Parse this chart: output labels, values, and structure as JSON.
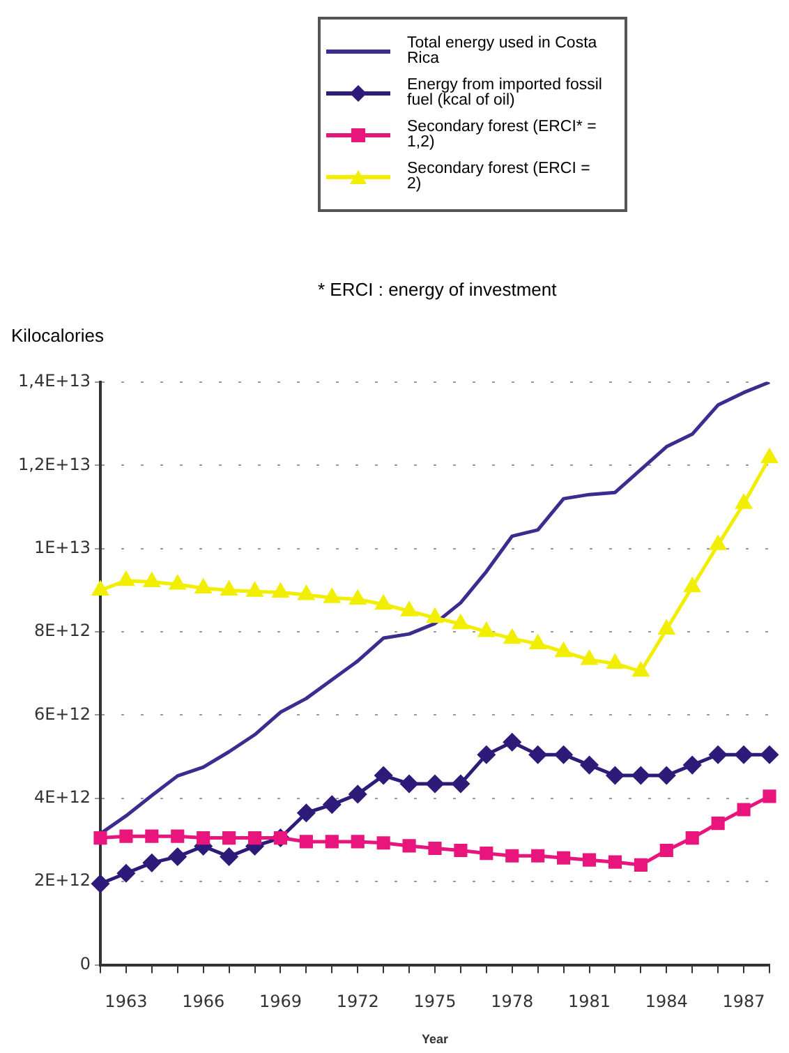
{
  "chart_data": {
    "type": "line",
    "ylabel": "Kilocalories",
    "xlabel": "Year",
    "legend": "top",
    "grid": "y",
    "annotations": [
      "* ERCI : energy of investment"
    ],
    "categories": [
      null,
      "1963",
      null,
      null,
      "1966",
      null,
      null,
      "1969",
      null,
      null,
      "1972",
      null,
      null,
      "1975",
      null,
      null,
      "1978",
      null,
      null,
      "1981",
      null,
      null,
      "1984",
      null,
      null,
      "1987",
      null
    ],
    "ylim": [
      0,
      14000000000000
    ],
    "yticks": [
      0,
      {
        "value": 2000000000000,
        "label": "2E+12"
      },
      {
        "value": 4000000000000,
        "label": "4E+12"
      },
      {
        "value": 6000000000000,
        "label": "6E+12"
      },
      {
        "value": 8000000000000,
        "label": "8E+12"
      },
      {
        "value": 10000000000000,
        "label": "1E+13"
      },
      {
        "value": 12000000000000,
        "label": "1,2E+13"
      },
      {
        "value": 14000000000000,
        "label": "1,4E+13"
      }
    ],
    "series": [
      {
        "name": "Total energy used in Costa Rica",
        "color": "#3d2b8f",
        "marker": "none",
        "values": [
          3150000000000.0,
          3580000000000.0,
          4070000000000.0,
          4540000000000.0,
          4750000000000.0,
          5120000000000.0,
          5530000000000.0,
          6070000000000.0,
          6400000000000.0,
          6850000000000.0,
          7300000000000.0,
          7850000000000.0,
          7950000000000.0,
          8200000000000.0,
          8700000000000.0,
          9450000000000.0,
          10300000000000.0,
          10450000000000.0,
          11200000000000.0,
          11300000000000.0,
          11350000000000.0,
          11900000000000.0,
          12450000000000.0,
          12750000000000.0,
          13450000000000.0,
          13750000000000.0,
          14000000000000.0
        ]
      },
      {
        "name": "Energy from imported fossil fuel (kcal of oil)",
        "color": "#2e1a78",
        "marker": "diamond",
        "values": [
          1950000000000.0,
          2200000000000.0,
          2450000000000.0,
          2600000000000.0,
          2850000000000.0,
          2600000000000.0,
          2850000000000.0,
          3050000000000.0,
          3650000000000.0,
          3850000000000.0,
          4100000000000.0,
          4550000000000.0,
          4350000000000.0,
          4350000000000.0,
          4350000000000.0,
          5050000000000.0,
          5350000000000.0,
          5050000000000.0,
          5050000000000.0,
          4800000000000.0,
          4550000000000.0,
          4550000000000.0,
          4550000000000.0,
          4800000000000.0,
          5050000000000.0,
          5050000000000.0,
          5050000000000.0
        ]
      },
      {
        "name": "Secondary forest (ERCI* = 1,2)",
        "color": "#e8157d",
        "marker": "square",
        "values": [
          3050000000000.0,
          3090000000000.0,
          3090000000000.0,
          3090000000000.0,
          3050000000000.0,
          3050000000000.0,
          3050000000000.0,
          3050000000000.0,
          2960000000000.0,
          2960000000000.0,
          2960000000000.0,
          2930000000000.0,
          2860000000000.0,
          2800000000000.0,
          2750000000000.0,
          2680000000000.0,
          2620000000000.0,
          2620000000000.0,
          2570000000000.0,
          2520000000000.0,
          2470000000000.0,
          2400000000000.0,
          2750000000000.0,
          3050000000000.0,
          3400000000000.0,
          3730000000000.0,
          4050000000000.0
        ]
      },
      {
        "name": "Secondary forest (ERCI = 2)",
        "color": "#f2ee00",
        "marker": "triangle",
        "values": [
          9000000000000.0,
          9230000000000.0,
          9200000000000.0,
          9140000000000.0,
          9050000000000.0,
          9000000000000.0,
          8970000000000.0,
          8950000000000.0,
          8890000000000.0,
          8820000000000.0,
          8780000000000.0,
          8660000000000.0,
          8500000000000.0,
          8340000000000.0,
          8190000000000.0,
          8000000000000.0,
          7840000000000.0,
          7710000000000.0,
          7520000000000.0,
          7330000000000.0,
          7240000000000.0,
          7050000000000.0,
          8060000000000.0,
          9080000000000.0,
          10090000000000.0,
          11080000000000.0,
          12180000000000.0
        ]
      }
    ]
  }
}
